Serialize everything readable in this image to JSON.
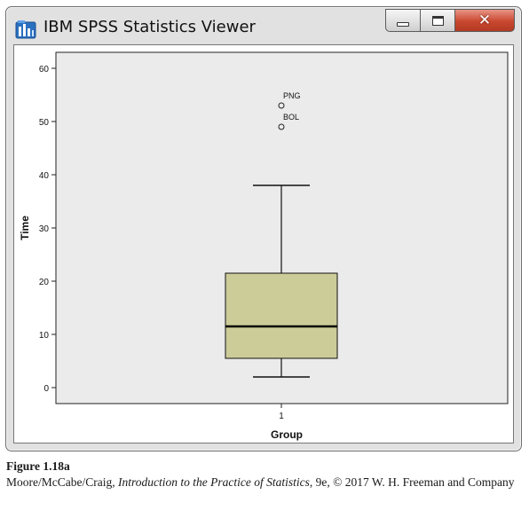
{
  "window": {
    "title": "IBM SPSS Statistics Viewer",
    "controls": {
      "minimize": "minimize",
      "maximize": "maximize",
      "close": "close"
    }
  },
  "chart_data": {
    "type": "boxplot",
    "title": "",
    "xlabel": "Group",
    "ylabel": "Time",
    "categories": [
      "1"
    ],
    "ylim": [
      -3,
      63
    ],
    "yticks": [
      0,
      10,
      20,
      30,
      40,
      50,
      60
    ],
    "box": {
      "whisker_low": 2,
      "q1": 5.5,
      "median": 11.5,
      "q3": 21.5,
      "whisker_high": 38
    },
    "outliers": [
      {
        "label": "PNG",
        "value": 53
      },
      {
        "label": "BOL",
        "value": 49
      }
    ],
    "box_color": "#cccc99",
    "plot_background": "#ebebeb",
    "grid": false,
    "legend": "none"
  },
  "caption": {
    "figure_label": "Figure 1.18a",
    "authors": "Moore/McCabe/Craig,",
    "book_title": "Introduction to the Practice of Statistics",
    "rest": ", 9e, © 2017 W. H. Freeman and Company"
  }
}
